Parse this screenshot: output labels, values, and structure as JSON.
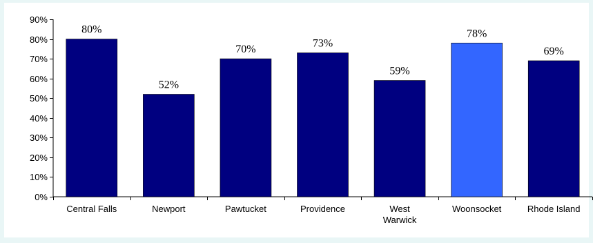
{
  "chart_data": {
    "type": "bar",
    "title": "",
    "xlabel": "",
    "ylabel": "",
    "ylim": [
      0,
      90
    ],
    "y_ticks": [
      "0%",
      "10%",
      "20%",
      "30%",
      "40%",
      "50%",
      "60%",
      "70%",
      "80%",
      "90%"
    ],
    "y_tick_values": [
      0,
      10,
      20,
      30,
      40,
      50,
      60,
      70,
      80,
      90
    ],
    "categories": [
      [
        "Central Falls"
      ],
      [
        "Newport"
      ],
      [
        "Pawtucket"
      ],
      [
        "Providence"
      ],
      [
        "West",
        "Warwick"
      ],
      [
        "Woonsocket"
      ],
      [
        "Rhode Island"
      ]
    ],
    "values": [
      80,
      52,
      70,
      73,
      59,
      78,
      69
    ],
    "data_labels": [
      "80%",
      "52%",
      "70%",
      "73%",
      "59%",
      "78%",
      "69%"
    ],
    "bar_colors": [
      "#000080",
      "#000080",
      "#000080",
      "#000080",
      "#000080",
      "#3366ff",
      "#000080"
    ],
    "grid": false,
    "legend": "none"
  }
}
